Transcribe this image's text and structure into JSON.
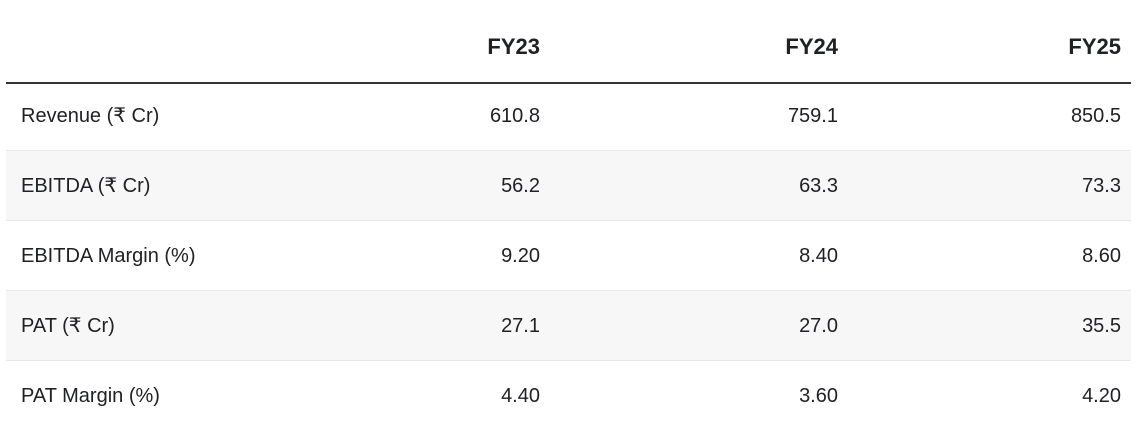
{
  "table": {
    "columns": [
      "",
      "FY23",
      "FY24",
      "FY25"
    ],
    "rows": [
      {
        "label": "Revenue (₹ Cr)",
        "values": [
          "610.8",
          "759.1",
          "850.5"
        ]
      },
      {
        "label": "EBITDA (₹ Cr)",
        "values": [
          "56.2",
          "63.3",
          "73.3"
        ]
      },
      {
        "label": "EBITDA Margin (%)",
        "values": [
          "9.20",
          "8.40",
          "8.60"
        ]
      },
      {
        "label": "PAT (₹ Cr)",
        "values": [
          "27.1",
          "27.0",
          "35.5"
        ]
      },
      {
        "label": "PAT Margin (%)",
        "values": [
          "4.40",
          "3.60",
          "4.20"
        ]
      }
    ],
    "colors": {
      "text": "#202124",
      "header_rule": "#333333",
      "row_divider": "#e9e9e9",
      "stripe": "#f7f7f7",
      "background": "#ffffff"
    }
  },
  "chart_data": {
    "type": "table",
    "title": "",
    "categories": [
      "FY23",
      "FY24",
      "FY25"
    ],
    "series": [
      {
        "name": "Revenue (₹ Cr)",
        "values": [
          610.8,
          759.1,
          850.5
        ]
      },
      {
        "name": "EBITDA (₹ Cr)",
        "values": [
          56.2,
          63.3,
          73.3
        ]
      },
      {
        "name": "EBITDA Margin (%)",
        "values": [
          9.2,
          8.4,
          8.6
        ]
      },
      {
        "name": "PAT (₹ Cr)",
        "values": [
          27.1,
          27.0,
          35.5
        ]
      },
      {
        "name": "PAT Margin (%)",
        "values": [
          4.4,
          3.6,
          4.2
        ]
      }
    ]
  }
}
